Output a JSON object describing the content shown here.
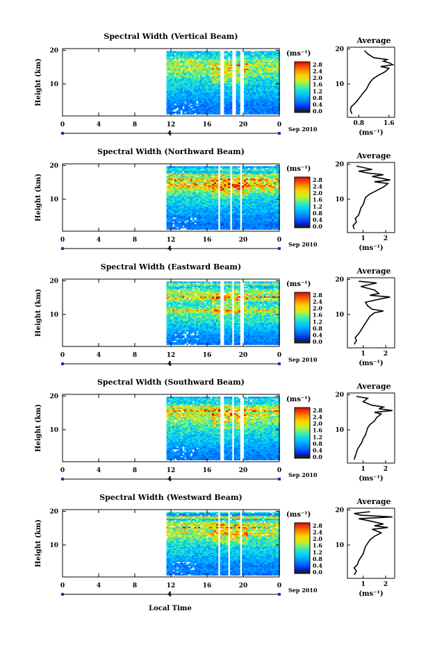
{
  "figure": {
    "xaxis_label": "Local Time",
    "date_label": "Sep 2010",
    "date_marker": "4",
    "colorbar_unit": "(ms⁻¹)",
    "avg_title": "Average",
    "avg_xunit": "(ms⁻¹)"
  },
  "chart_data": [
    {
      "type": "heatmap",
      "title": "Spectral Width (Vertical Beam)",
      "ylabel": "Height (km)",
      "xlabel": "Local Time",
      "x_ticks": [
        "0",
        "4",
        "8",
        "12",
        "16",
        "20",
        "0"
      ],
      "y_ticks": [
        "10",
        "20"
      ],
      "xlim": [
        0,
        24
      ],
      "ylim": [
        0.5,
        20.5
      ],
      "data_start_hour": 11.5,
      "data_end_hour": 23.9,
      "data_top_km": 19.5,
      "gaps_hours": [
        [
          17.5,
          17.9
        ],
        [
          18.8,
          19.1
        ],
        [
          19.7,
          20.0
        ]
      ],
      "colorbar": {
        "ticks": [
          "0.0",
          "0.4",
          "0.8",
          "1.2",
          "1.6",
          "2.0",
          "2.4",
          "2.8"
        ],
        "range": [
          0,
          2.8
        ],
        "unit": "(ms⁻¹)"
      },
      "average_profile": {
        "title": "Average",
        "x_ticks": [
          "0.8",
          "1.6"
        ],
        "xlim": [
          0.5,
          1.75
        ],
        "xunit": "(ms⁻¹)",
        "heights_km": [
          1.5,
          2.5,
          3.5,
          4.5,
          5.5,
          6.5,
          7.5,
          8.5,
          9.5,
          10.5,
          11.5,
          12.5,
          13.5,
          14.5,
          15.0,
          15.5,
          16.0,
          16.5,
          17.0,
          17.5,
          18.5,
          19.5
        ],
        "values": [
          0.62,
          0.58,
          0.6,
          0.7,
          0.78,
          0.85,
          0.92,
          1.0,
          1.05,
          1.1,
          1.18,
          1.32,
          1.5,
          1.6,
          1.38,
          1.7,
          1.62,
          1.45,
          1.55,
          1.2,
          1.05,
          0.95
        ]
      }
    },
    {
      "type": "heatmap",
      "title": "Spectral Width (Northward Beam)",
      "ylabel": "Height (km)",
      "xlabel": "Local Time",
      "x_ticks": [
        "0",
        "4",
        "8",
        "12",
        "16",
        "20",
        "0"
      ],
      "y_ticks": [
        "10",
        "20"
      ],
      "xlim": [
        0,
        24
      ],
      "ylim": [
        0.5,
        20.5
      ],
      "data_start_hour": 11.5,
      "data_end_hour": 23.9,
      "data_top_km": 19.5,
      "gaps_hours": [
        [
          17.2,
          17.5
        ],
        [
          18.6,
          18.8
        ],
        [
          19.7,
          19.9
        ]
      ],
      "colorbar": {
        "ticks": [
          "0.0",
          "0.4",
          "0.8",
          "1.2",
          "1.6",
          "2.0",
          "2.4",
          "2.8"
        ],
        "range": [
          0,
          2.8
        ],
        "unit": "(ms⁻¹)"
      },
      "average_profile": {
        "title": "Average",
        "x_ticks": [
          "1",
          "2"
        ],
        "xlim": [
          0.3,
          2.4
        ],
        "xunit": "(ms⁻¹)",
        "heights_km": [
          1.5,
          2.5,
          3.5,
          4.5,
          5.5,
          6.5,
          7.5,
          8.5,
          9.5,
          10.5,
          11.5,
          12.5,
          13.5,
          14.5,
          15.0,
          15.5,
          16.0,
          16.5,
          17.0,
          17.5,
          18.0,
          18.5,
          19.5
        ],
        "values": [
          0.6,
          0.55,
          0.7,
          0.65,
          0.8,
          0.85,
          0.9,
          1.0,
          1.05,
          1.1,
          1.3,
          1.6,
          1.9,
          2.1,
          1.5,
          2.2,
          1.8,
          1.4,
          1.9,
          1.2,
          0.8,
          1.4,
          0.7
        ]
      }
    },
    {
      "type": "heatmap",
      "title": "Spectral Width (Eastward Beam)",
      "ylabel": "Height (km)",
      "xlabel": "Local Time",
      "x_ticks": [
        "0",
        "4",
        "8",
        "12",
        "16",
        "20",
        "0"
      ],
      "y_ticks": [
        "10",
        "20"
      ],
      "xlim": [
        0,
        24
      ],
      "ylim": [
        0.5,
        20.5
      ],
      "data_start_hour": 11.5,
      "data_end_hour": 23.9,
      "data_top_km": 19.5,
      "gaps_hours": [
        [
          17.5,
          17.8
        ],
        [
          18.8,
          19.0
        ],
        [
          19.7,
          20.0
        ]
      ],
      "colorbar": {
        "ticks": [
          "0.0",
          "0.4",
          "0.8",
          "1.2",
          "1.6",
          "2.0",
          "2.4",
          "2.8"
        ],
        "range": [
          0,
          2.8
        ],
        "unit": "(ms⁻¹)"
      },
      "average_profile": {
        "title": "Average",
        "x_ticks": [
          "1",
          "2"
        ],
        "xlim": [
          0.3,
          2.4
        ],
        "xunit": "(ms⁻¹)",
        "heights_km": [
          1.5,
          2.5,
          3.5,
          4.5,
          5.5,
          6.5,
          7.5,
          8.5,
          9.5,
          10.5,
          11.0,
          11.5,
          12.5,
          13.5,
          14.5,
          15.0,
          15.5,
          16.0,
          17.0,
          18.0,
          19.0,
          19.5
        ],
        "values": [
          0.6,
          0.7,
          0.65,
          0.8,
          0.9,
          1.0,
          1.1,
          1.2,
          1.3,
          1.5,
          1.9,
          1.4,
          1.2,
          1.1,
          1.8,
          2.2,
          1.3,
          1.7,
          1.5,
          0.9,
          1.6,
          0.8
        ]
      }
    },
    {
      "type": "heatmap",
      "title": "Spectral Width (Southward Beam)",
      "ylabel": "Height (km)",
      "xlabel": "Local Time",
      "x_ticks": [
        "0",
        "4",
        "8",
        "12",
        "16",
        "20",
        "0"
      ],
      "y_ticks": [
        "10",
        "20"
      ],
      "xlim": [
        0,
        24
      ],
      "ylim": [
        0.5,
        20.5
      ],
      "data_start_hour": 11.5,
      "data_end_hour": 23.9,
      "data_top_km": 19.5,
      "gaps_hours": [
        [
          17.5,
          17.8
        ],
        [
          18.8,
          19.0
        ],
        [
          19.7,
          20.0
        ]
      ],
      "colorbar": {
        "ticks": [
          "0.0",
          "0.4",
          "0.8",
          "1.2",
          "1.6",
          "2.0",
          "2.4",
          "2.8"
        ],
        "range": [
          0,
          2.8
        ],
        "unit": "(ms⁻¹)"
      },
      "average_profile": {
        "title": "Average",
        "x_ticks": [
          "1",
          "2"
        ],
        "xlim": [
          0.3,
          2.4
        ],
        "xunit": "(ms⁻¹)",
        "heights_km": [
          1.5,
          2.5,
          3.5,
          4.5,
          5.5,
          6.5,
          7.5,
          8.5,
          9.5,
          10.5,
          11.5,
          12.5,
          13.5,
          14.5,
          15.0,
          15.5,
          16.0,
          16.5,
          17.0,
          18.0,
          19.0,
          19.5
        ],
        "values": [
          0.6,
          0.65,
          0.7,
          0.75,
          0.85,
          0.95,
          1.0,
          1.1,
          1.15,
          1.2,
          1.3,
          1.5,
          1.6,
          1.8,
          1.5,
          2.3,
          1.7,
          1.9,
          1.4,
          1.0,
          1.2,
          0.7
        ]
      }
    },
    {
      "type": "heatmap",
      "title": "Spectral Width (Westward Beam)",
      "ylabel": "Height (km)",
      "xlabel": "Local Time",
      "x_ticks": [
        "0",
        "4",
        "8",
        "12",
        "16",
        "20",
        "0"
      ],
      "y_ticks": [
        "10",
        "20"
      ],
      "xlim": [
        0,
        24
      ],
      "ylim": [
        0.5,
        20.5
      ],
      "data_start_hour": 11.5,
      "data_end_hour": 23.9,
      "data_top_km": 19.5,
      "gaps_hours": [
        [
          17.2,
          17.5
        ],
        [
          18.3,
          18.5
        ],
        [
          19.6,
          19.9
        ]
      ],
      "colorbar": {
        "ticks": [
          "0.0",
          "0.4",
          "0.8",
          "1.2",
          "1.6",
          "2.0",
          "2.4",
          "2.8"
        ],
        "range": [
          0,
          2.8
        ],
        "unit": "(ms⁻¹)"
      },
      "average_profile": {
        "title": "Average",
        "x_ticks": [
          "1",
          "2"
        ],
        "xlim": [
          0.3,
          2.4
        ],
        "xunit": "(ms⁻¹)",
        "heights_km": [
          1.5,
          2.5,
          3.5,
          4.5,
          5.5,
          6.5,
          7.5,
          8.5,
          9.5,
          10.5,
          11.5,
          12.5,
          13.5,
          14.5,
          15.0,
          15.5,
          16.0,
          17.0,
          17.5,
          18.0,
          18.5,
          19.0,
          19.5
        ],
        "values": [
          0.6,
          0.7,
          0.6,
          0.75,
          0.8,
          0.9,
          1.0,
          1.05,
          1.1,
          1.2,
          1.3,
          1.5,
          1.8,
          1.4,
          2.1,
          1.5,
          1.9,
          1.2,
          0.8,
          2.3,
          0.9,
          0.6,
          1.3
        ]
      }
    }
  ]
}
